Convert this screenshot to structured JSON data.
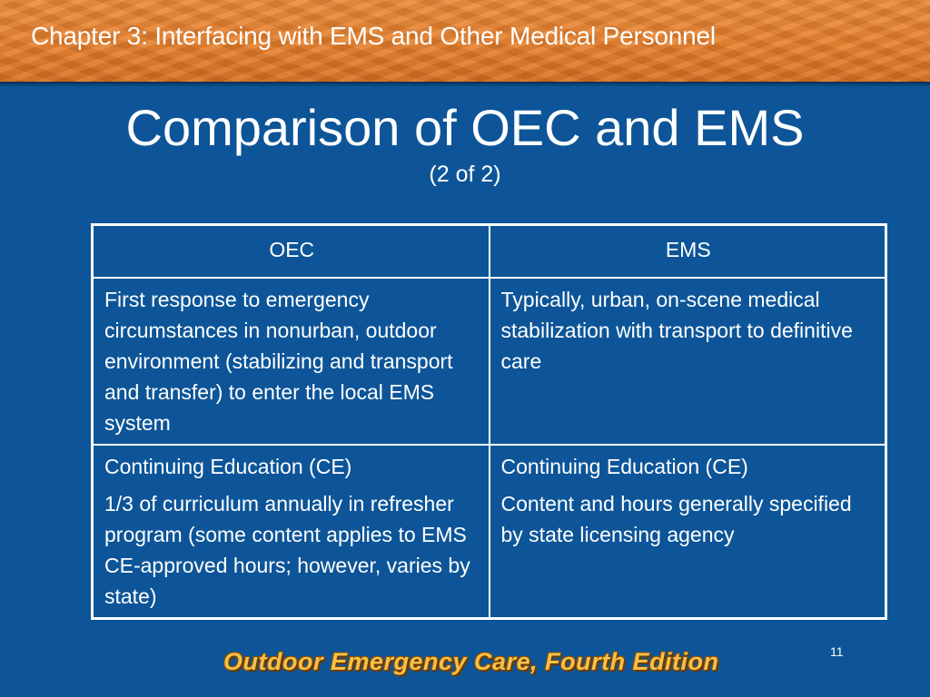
{
  "header": {
    "chapter_title": "Chapter 3: Interfacing with EMS and Other Medical Personnel"
  },
  "slide": {
    "title": "Comparison of OEC and EMS",
    "subtitle": "(2 of 2)",
    "page_number": "11"
  },
  "table": {
    "headers": [
      "OEC",
      "EMS"
    ],
    "rows": [
      {
        "oec": [
          "First response to emergency circumstances in nonurban, outdoor environment (stabilizing and transport and transfer) to enter the local EMS system"
        ],
        "ems": [
          "Typically, urban, on-scene medical stabilization with transport to definitive care"
        ]
      },
      {
        "oec": [
          "Continuing Education (CE)",
          "1/3 of curriculum annually in refresher program (some content applies to EMS CE-approved hours; however, varies by state)"
        ],
        "ems": [
          "Continuing Education (CE)",
          "Content and hours generally specified by state licensing agency"
        ]
      }
    ]
  },
  "footer": {
    "logo_text": "Outdoor Emergency Care, Fourth Edition"
  },
  "colors": {
    "background": "#0d5598",
    "header": "#e37d2c",
    "text": "#ffffff",
    "logo": "#f5c04a"
  }
}
